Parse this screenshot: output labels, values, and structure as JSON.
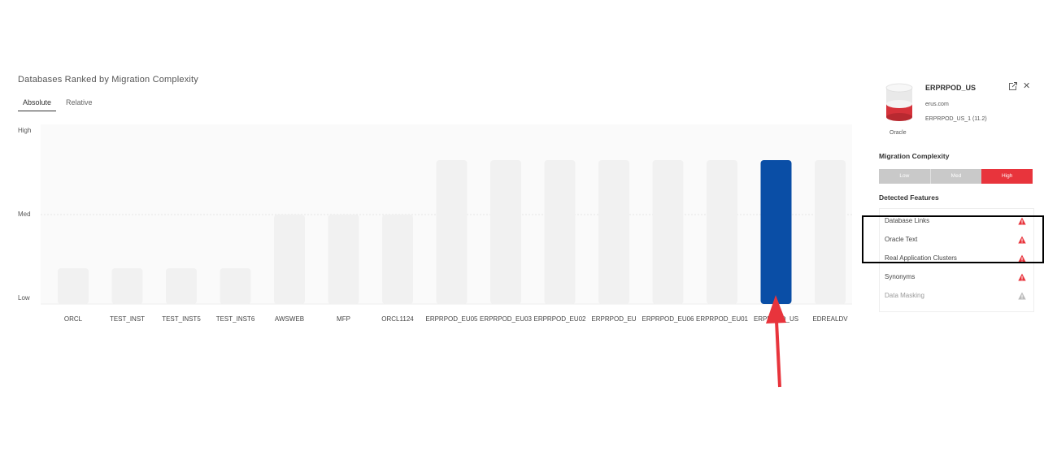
{
  "chart_title": "Databases Ranked by Migration Complexity",
  "tabs": [
    {
      "label": "Absolute",
      "active": true
    },
    {
      "label": "Relative",
      "active": false
    }
  ],
  "chart_data": {
    "type": "bar",
    "title": "Databases Ranked by Migration Complexity",
    "y_levels": [
      "Low",
      "Med",
      "High"
    ],
    "categories": [
      "ORCL",
      "TEST_INST",
      "TEST_INST5",
      "TEST_INST6",
      "AWSWEB",
      "MFP",
      "ORCL1124",
      "ERPRPOD_EU05",
      "ERPRPOD_EU03",
      "ERPRPOD_EU02",
      "ERPRPOD_EU",
      "ERPRPOD_EU06",
      "ERPRPOD_EU01",
      "ERPRPOD_US",
      "EDREALDV"
    ],
    "values": [
      1,
      1,
      1,
      1,
      2,
      2,
      2,
      3,
      3,
      3,
      3,
      3,
      3,
      3,
      3
    ],
    "selected_index": 13,
    "colors": {
      "bar": "#f1f1f1",
      "selected": "#0a4ea6"
    }
  },
  "panel": {
    "db_name": "ERPRPOD_US",
    "db_host": "erus.com",
    "db_instance": "ERPRPOD_US_1 (11.2)",
    "db_type": "Oracle",
    "icons": [
      "database-icon",
      "external-link-icon",
      "close-icon"
    ],
    "complexity_heading": "Migration Complexity",
    "complexity_levels": [
      "Low",
      "Med",
      "High"
    ],
    "complexity_value": "High",
    "features_heading": "Detected Features",
    "features": [
      {
        "label": "Database Links",
        "severity": "high"
      },
      {
        "label": "Oracle Text",
        "severity": "high"
      },
      {
        "label": "Real Application Clusters",
        "severity": "high"
      },
      {
        "label": "Synonyms",
        "severity": "high"
      },
      {
        "label": "Data Masking",
        "severity": "low"
      }
    ],
    "colors": {
      "high": "#e8343c",
      "low": "#bbbbbb"
    }
  },
  "annotations": {
    "arrow_color": "#e8343c",
    "box_color": "#000000"
  }
}
